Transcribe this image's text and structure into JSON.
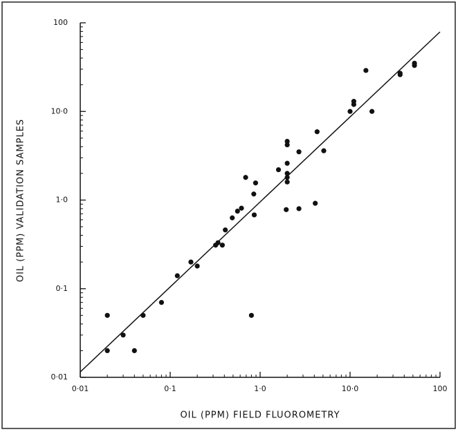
{
  "chart_data": {
    "type": "scatter",
    "x_label": "OIL (PPM) FIELD FLUOROMETRY",
    "y_label": "OIL (PPM) VALIDATION SAMPLES",
    "log_x": true,
    "log_y": true,
    "color": "#111111",
    "xlim": [
      0.01,
      100
    ],
    "ylim": [
      0.01,
      100
    ],
    "xticks": [
      {
        "value": 0.01,
        "label": "0·01"
      },
      {
        "value": 0.1,
        "label": "0·1"
      },
      {
        "value": 1,
        "label": "1·0"
      },
      {
        "value": 10,
        "label": "10·0"
      },
      100
    ],
    "yticks": [
      {
        "value": 0.01,
        "label": "0·01"
      },
      {
        "value": 0.1,
        "label": "0·1"
      },
      {
        "value": 1,
        "label": "1·0"
      },
      {
        "value": 10,
        "label": "10·0"
      },
      100
    ],
    "x": [
      0.02,
      0.02,
      0.03,
      0.04,
      0.05,
      0.08,
      0.12,
      0.17,
      0.2,
      0.32,
      0.34,
      0.38,
      0.41,
      0.49,
      0.56,
      0.62,
      0.69,
      0.85,
      0.86,
      0.89,
      0.8,
      1.6,
      1.95,
      2.0,
      2.0,
      2.0,
      2.0,
      2.0,
      2.0,
      2.7,
      2.7,
      4.1,
      4.3,
      5.1,
      10,
      11,
      11,
      15,
      17.5,
      36,
      36,
      52,
      52
    ],
    "y": [
      0.05,
      0.02,
      0.03,
      0.02,
      0.05,
      0.07,
      0.14,
      0.2,
      0.18,
      0.31,
      0.33,
      0.31,
      0.46,
      0.63,
      0.75,
      0.81,
      1.8,
      1.17,
      0.68,
      1.56,
      0.05,
      2.2,
      0.78,
      4.6,
      4.2,
      2.6,
      2.0,
      1.8,
      1.6,
      0.8,
      3.5,
      0.92,
      5.9,
      3.6,
      10,
      12,
      13,
      29,
      10,
      26,
      27,
      33,
      35
    ],
    "fit": {
      "x": [
        0.01,
        100
      ],
      "y": [
        0.0115,
        79
      ]
    }
  }
}
